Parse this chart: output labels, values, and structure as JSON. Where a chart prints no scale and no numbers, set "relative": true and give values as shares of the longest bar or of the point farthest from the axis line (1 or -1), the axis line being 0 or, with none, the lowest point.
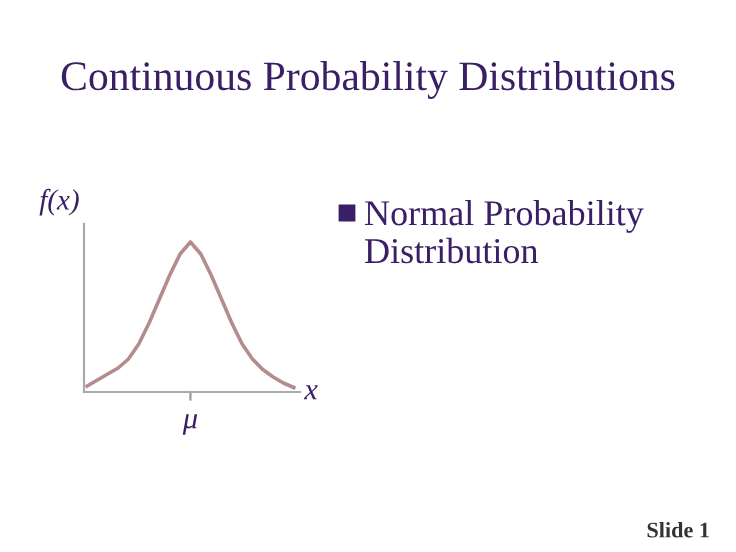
{
  "chart_data": {
    "type": "line",
    "title": "Continuous Probability Distributions",
    "ylabel": "f(x)",
    "xlabel": "x",
    "relative": true,
    "categories": [
      null,
      null,
      null,
      null,
      null,
      null,
      null,
      null,
      null,
      null,
      null,
      null,
      null,
      null,
      null,
      null,
      null,
      null,
      null,
      null,
      null
    ],
    "series": [
      {
        "color": "#b48c8c",
        "values": [
          0.04,
          0.08,
          0.12,
          0.16,
          0.22,
          0.32,
          0.46,
          0.62,
          0.78,
          0.92,
          1.0,
          0.92,
          0.78,
          0.62,
          0.46,
          0.32,
          0.22,
          0.15,
          0.1,
          0.06,
          0.03
        ]
      }
    ],
    "annotations": [
      "Normal Probability Distribution",
      "Slide 1",
      "μ"
    ],
    "marker": "none",
    "line_style": "solid"
  }
}
